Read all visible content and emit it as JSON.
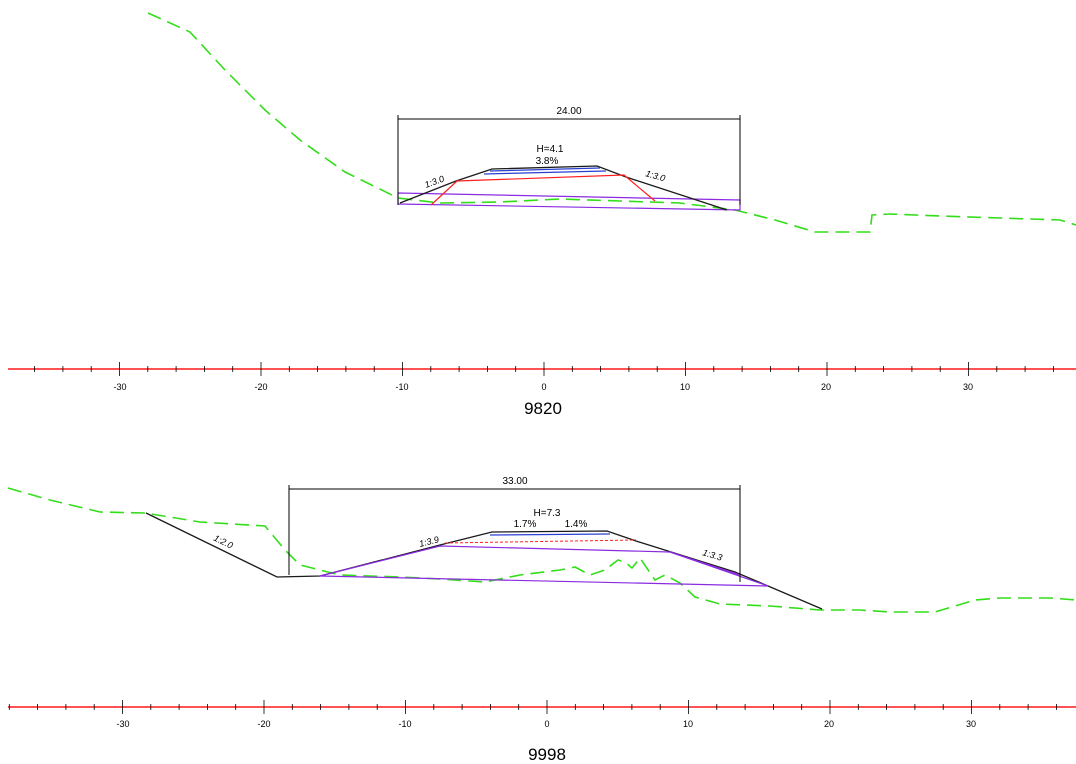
{
  "colors": {
    "ground": "#33dd1a",
    "design_line": "#1a1a1a",
    "axis": "#ff1a1a",
    "subgrade": "#ff2020",
    "layer": "#8a2be2",
    "pavement": "#2a3fd0"
  },
  "sections": [
    {
      "station": "9820",
      "width_dimension": "24.00",
      "height_label": "H=4.1",
      "crossfall_labels": [
        "3.8%"
      ],
      "left_slope": "1:3.0",
      "right_slope": "1:3.0",
      "axis_ticks": [
        "-30",
        "-20",
        "-10",
        "0",
        "10",
        "20",
        "30"
      ]
    },
    {
      "station": "9998",
      "width_dimension": "33.00",
      "height_label": "H=7.3",
      "crossfall_labels": [
        "1.7%",
        "1.4%"
      ],
      "left_slope": "1:3.9",
      "right_slope": "1:3.3",
      "cut_slope": "1:2.0",
      "axis_ticks": [
        "-30",
        "-20",
        "-10",
        "0",
        "10",
        "20",
        "30"
      ]
    }
  ]
}
